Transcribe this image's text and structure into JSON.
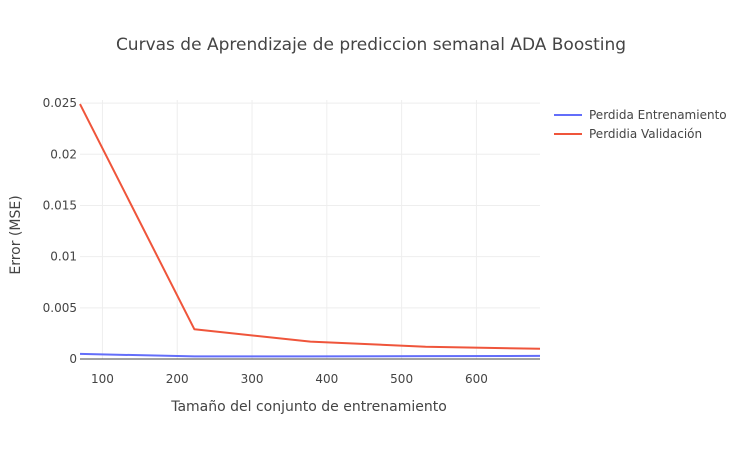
{
  "chart_data": {
    "type": "line",
    "title": "Curvas de Aprendizaje de prediccion semanal ADA Boosting",
    "xlabel": "Tamaño del conjunto de entrenamiento",
    "ylabel": "Error (MSE)",
    "xlim": [
      70,
      685
    ],
    "ylim": [
      0,
      0.0253
    ],
    "xticks": [
      100,
      200,
      300,
      400,
      500,
      600
    ],
    "xtick_labels": [
      "100",
      "200",
      "300",
      "400",
      "500",
      "600"
    ],
    "yticks": [
      0,
      0.005,
      0.01,
      0.015,
      0.02,
      0.025
    ],
    "ytick_labels": [
      "0",
      "0.005",
      "0.01",
      "0.015",
      "0.02",
      "0.025"
    ],
    "grid": true,
    "legend_position": "top-right, outside plot",
    "series": [
      {
        "name": "Perdida Entrenamiento",
        "color": "#636efa",
        "x": [
          70,
          223,
          378,
          532,
          685
        ],
        "y": [
          0.0005,
          0.00025,
          0.00025,
          0.00028,
          0.0003
        ]
      },
      {
        "name": "Perdidia Validación",
        "color": "#ef553b",
        "x": [
          70,
          223,
          378,
          532,
          685
        ],
        "y": [
          0.0249,
          0.0029,
          0.0017,
          0.0012,
          0.001
        ]
      }
    ]
  }
}
